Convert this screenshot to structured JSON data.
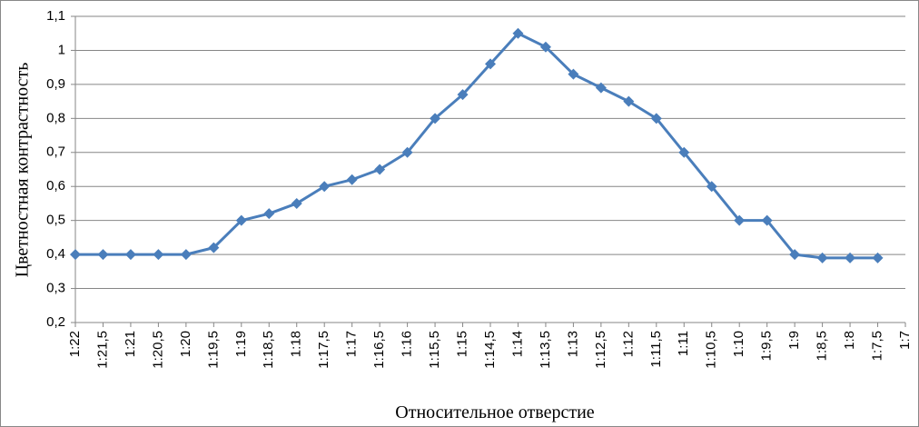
{
  "chart_data": {
    "type": "line",
    "y_label": "Цветностная контрастность",
    "x_label": "Относительное отверстие",
    "categories": [
      "1:22",
      "1:21,5",
      "1:21",
      "1:20,5",
      "1:20",
      "1:19,5",
      "1:19",
      "1:18,5",
      "1:18",
      "1:17,5",
      "1:17",
      "1:16,5",
      "1:16",
      "1:15,5",
      "1:15",
      "1:14,5",
      "1:14",
      "1:13,5",
      "1:13",
      "1:12,5",
      "1:12",
      "1:11,5",
      "1:11",
      "1:10,5",
      "1:10",
      "1:9,5",
      "1:9",
      "1:8,5",
      "1:8",
      "1:7,5",
      "1:7"
    ],
    "series": [
      {
        "color": "#4a7ebb",
        "values": [
          0.4,
          0.4,
          0.4,
          0.4,
          0.4,
          0.42,
          0.5,
          0.52,
          0.55,
          0.6,
          0.62,
          0.65,
          0.7,
          0.8,
          0.87,
          0.96,
          1.05,
          1.01,
          0.93,
          0.89,
          0.85,
          0.8,
          0.7,
          0.6,
          0.5,
          0.5,
          0.4,
          0.39,
          0.39,
          0.39,
          null
        ]
      }
    ],
    "ylim": [
      0.2,
      1.1
    ],
    "yticks": [
      {
        "value": 0.2,
        "label": "0,2"
      },
      {
        "value": 0.3,
        "label": "0,3"
      },
      {
        "value": 0.4,
        "label": "0,4"
      },
      {
        "value": 0.5,
        "label": "0,5"
      },
      {
        "value": 0.6,
        "label": "0,6"
      },
      {
        "value": 0.7,
        "label": "0,7"
      },
      {
        "value": 0.8,
        "label": "0,8"
      },
      {
        "value": 0.9,
        "label": "0,9"
      },
      1,
      {
        "value": 1.1,
        "label": "1,1"
      }
    ],
    "grid": true
  }
}
